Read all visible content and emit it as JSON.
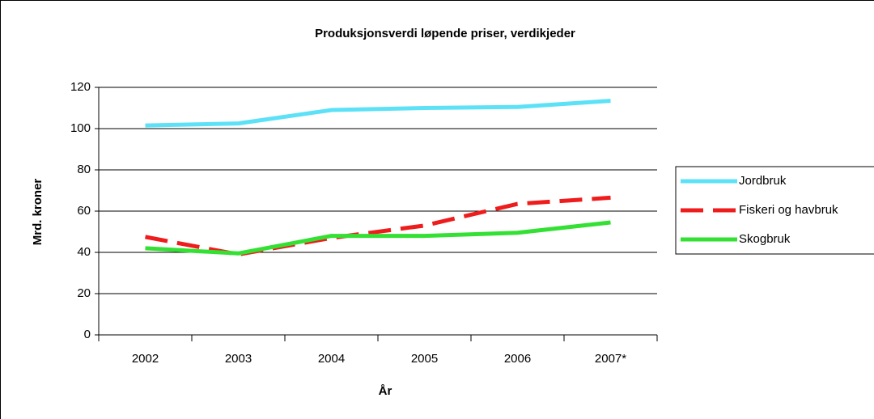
{
  "chart_data": {
    "type": "line",
    "title": "Produksjonsverdi løpende priser, verdikjeder",
    "x_label": "År",
    "y_label": "Mrd. kroner",
    "categories": [
      "2002",
      "2003",
      "2004",
      "2005",
      "2006",
      "2007*"
    ],
    "series": [
      {
        "name": "Jordbruk",
        "color": "#5ce1f7",
        "values": [
          101.5,
          102.5,
          109,
          110,
          110.5,
          113.5
        ]
      },
      {
        "name": "Fiskeri og havbruk",
        "color": "#ee1c1c",
        "dashed": true,
        "values": [
          47.5,
          39,
          47,
          53,
          63.5,
          66.5
        ]
      },
      {
        "name": "Skogbruk",
        "color": "#33e033",
        "values": [
          42,
          39.5,
          48,
          48,
          49.5,
          54.5
        ]
      }
    ],
    "ylim": [
      0,
      120
    ],
    "yticks": [
      0,
      20,
      40,
      60,
      80,
      100,
      120
    ],
    "grid": true,
    "legend": "right"
  }
}
